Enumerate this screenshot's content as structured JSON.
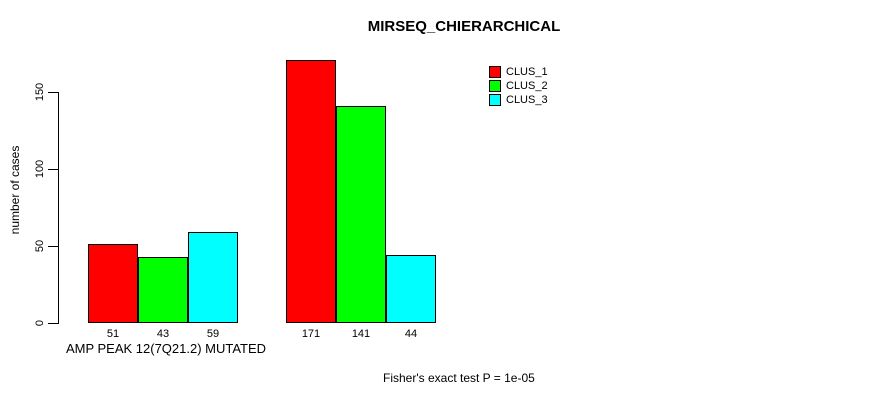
{
  "chart_data": {
    "type": "bar",
    "title": "MIRSEQ_CHIERARCHICAL",
    "xlabel": "AMP PEAK 12(7Q21.2) MUTATED",
    "ylabel": "number of cases",
    "categories": [
      "AMP PEAK 12(7Q21.2) MUTATED",
      ""
    ],
    "series": [
      {
        "name": "CLUS_1",
        "color": "#ff0000",
        "values": [
          51,
          171
        ]
      },
      {
        "name": "CLUS_2",
        "color": "#00ff00",
        "values": [
          43,
          141
        ]
      },
      {
        "name": "CLUS_3",
        "color": "#00ffff",
        "values": [
          59,
          44
        ]
      }
    ],
    "yticks": [
      0,
      50,
      100,
      150
    ],
    "ylim": [
      0,
      175
    ],
    "grid": false,
    "bar_value_labels_shown": true,
    "legend_position": "top-right",
    "annotation": "Fisher's exact test P = 1e-05"
  }
}
